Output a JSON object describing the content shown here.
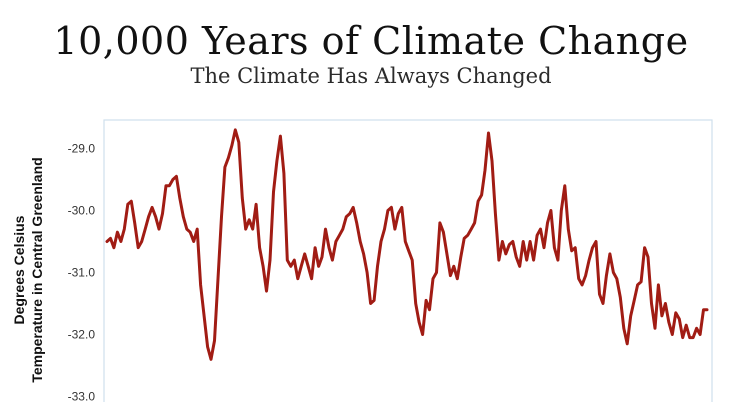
{
  "title": "10,000 Years of Climate Change",
  "subtitle": "The Climate Has Always Changed",
  "chart_data": {
    "type": "line",
    "ylabel": [
      "Degrees Celsius",
      "Temperature in Central Greenland"
    ],
    "ylim": [
      -33.0,
      -28.6
    ],
    "y_ticks": [
      "-29.0",
      "-30.0",
      "-31.0",
      "-32.0",
      "-33.0"
    ],
    "line_color": "#a11c14",
    "frame_color": "#cfe0ec",
    "grid": false,
    "series": [
      {
        "values": [
          -30.5,
          -30.45,
          -30.6,
          -30.35,
          -30.5,
          -30.3,
          -29.9,
          -29.85,
          -30.2,
          -30.6,
          -30.5,
          -30.3,
          -30.1,
          -29.95,
          -30.1,
          -30.3,
          -30.05,
          -29.6,
          -29.6,
          -29.5,
          -29.45,
          -29.8,
          -30.1,
          -30.3,
          -30.35,
          -30.5,
          -30.3,
          -31.2,
          -31.7,
          -32.2,
          -32.4,
          -32.1,
          -31.1,
          -30.1,
          -29.3,
          -29.15,
          -28.95,
          -28.7,
          -28.9,
          -29.8,
          -30.3,
          -30.15,
          -30.3,
          -29.9,
          -30.6,
          -30.9,
          -31.3,
          -30.8,
          -29.7,
          -29.2,
          -28.8,
          -29.4,
          -30.8,
          -30.9,
          -30.8,
          -31.1,
          -30.9,
          -30.7,
          -30.9,
          -31.1,
          -30.6,
          -30.9,
          -30.75,
          -30.3,
          -30.6,
          -30.8,
          -30.5,
          -30.4,
          -30.3,
          -30.1,
          -30.05,
          -29.95,
          -30.2,
          -30.5,
          -30.7,
          -31.0,
          -31.5,
          -31.45,
          -30.9,
          -30.5,
          -30.3,
          -30.0,
          -29.95,
          -30.3,
          -30.05,
          -29.95,
          -30.5,
          -30.65,
          -30.8,
          -31.5,
          -31.8,
          -32.0,
          -31.45,
          -31.6,
          -31.1,
          -31.0,
          -30.2,
          -30.35,
          -30.7,
          -31.05,
          -30.9,
          -31.1,
          -30.75,
          -30.45,
          -30.4,
          -30.3,
          -30.2,
          -29.85,
          -29.75,
          -29.35,
          -28.75,
          -29.2,
          -30.05,
          -30.8,
          -30.5,
          -30.7,
          -30.55,
          -30.5,
          -30.75,
          -30.9,
          -30.5,
          -30.8,
          -30.5,
          -30.8,
          -30.4,
          -30.3,
          -30.6,
          -30.2,
          -30.0,
          -30.6,
          -30.8,
          -30.0,
          -29.6,
          -30.3,
          -30.65,
          -30.6,
          -31.1,
          -31.2,
          -31.05,
          -30.8,
          -30.6,
          -30.5,
          -31.35,
          -31.5,
          -31.05,
          -30.7,
          -31.0,
          -31.1,
          -31.4,
          -31.9,
          -32.15,
          -31.7,
          -31.45,
          -31.2,
          -31.15,
          -30.6,
          -30.75,
          -31.5,
          -31.9,
          -31.2,
          -31.7,
          -31.5,
          -31.8,
          -32.0,
          -31.65,
          -31.75,
          -32.05,
          -31.85,
          -32.05,
          -32.05,
          -31.9,
          -32.0,
          -31.6,
          -31.6
        ]
      }
    ]
  }
}
